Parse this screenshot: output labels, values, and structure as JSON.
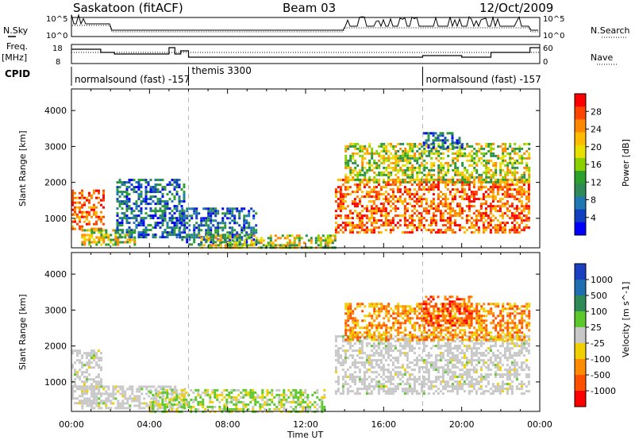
{
  "header": {
    "station": "Saskatoon (fitACF)",
    "beam": "Beam 03",
    "date": "12/Oct/2009"
  },
  "panel_labels": {
    "nsky": "N.Sky",
    "nsearch": "N.Search",
    "freq_line1": "Freq.",
    "freq_line2": "[MHz]",
    "nave": "Nave",
    "cpid": "CPID",
    "nsky_ticks": [
      "10^5",
      "10^0"
    ],
    "nsearch_ticks": [
      "10^5",
      "10^0"
    ],
    "freq_ticks": [
      "18",
      "8"
    ],
    "nave_ticks": [
      "60",
      "0"
    ]
  },
  "cpid_segments": [
    {
      "label": "normalsound (fast) -157",
      "start_hour": 0,
      "end_hour": 6
    },
    {
      "label": "themis 3300",
      "start_hour": 6,
      "end_hour": 18
    },
    {
      "label": "normalsound (fast) -157",
      "start_hour": 18,
      "end_hour": 24
    }
  ],
  "x_axis": {
    "label": "Time UT",
    "range": [
      0,
      24
    ],
    "ticks": [
      "00:00",
      "04:00",
      "08:00",
      "12:00",
      "16:00",
      "20:00",
      "00:00"
    ]
  },
  "colorbars": {
    "power": {
      "label": "Power [dB]",
      "tick_labels": [
        "28",
        "24",
        "20",
        "16",
        "12",
        "8",
        "4"
      ],
      "colors": [
        "#ff0000",
        "#ff4400",
        "#ff8800",
        "#ffbb00",
        "#e8e000",
        "#8ad000",
        "#2ca02c",
        "#2e8b57",
        "#1f77b4",
        "#1040c0",
        "#0000ff"
      ]
    },
    "velocity": {
      "label": "Velocity [m s^-1]",
      "tick_labels": [
        "1000",
        "500",
        "100",
        "25",
        "-25",
        "-100",
        "-500",
        "-1000"
      ],
      "colors": [
        "#1a3fc0",
        "#1f6fb0",
        "#2e8b57",
        "#5cc82c",
        "#c8c8c8",
        "#f0d000",
        "#ff8c00",
        "#ff5000",
        "#ff0000"
      ]
    }
  },
  "chart_data": [
    {
      "type": "heatmap",
      "title": "Power",
      "xlabel": "",
      "ylabel": "Slant Range [km]",
      "xlim": [
        0,
        24
      ],
      "ylim": [
        180,
        4600
      ],
      "yticks": [
        "1000",
        "2000",
        "3000",
        "4000"
      ],
      "regions": [
        {
          "t0": 0.0,
          "t1": 1.6,
          "r0": 700,
          "r1": 1800,
          "level": "high"
        },
        {
          "t0": 0.5,
          "t1": 3.2,
          "r0": 250,
          "r1": 700,
          "level": "mid"
        },
        {
          "t0": 2.3,
          "t1": 5.8,
          "r0": 500,
          "r1": 2100,
          "level": "low"
        },
        {
          "t0": 5.5,
          "t1": 9.5,
          "r0": 250,
          "r1": 1300,
          "level": "low"
        },
        {
          "t0": 6.5,
          "t1": 13.5,
          "r0": 180,
          "r1": 550,
          "level": "mid"
        },
        {
          "t0": 13.5,
          "t1": 23.4,
          "r0": 600,
          "r1": 2100,
          "level": "high"
        },
        {
          "t0": 14.0,
          "t1": 23.5,
          "r0": 2000,
          "r1": 3100,
          "level": "mid"
        },
        {
          "t0": 18.0,
          "t1": 20.0,
          "r0": 3000,
          "r1": 3400,
          "level": "low"
        }
      ]
    },
    {
      "type": "heatmap",
      "title": "Velocity",
      "xlabel": "Time UT",
      "ylabel": "Slant Range [km]",
      "xlim": [
        0,
        24
      ],
      "ylim": [
        180,
        4600
      ],
      "yticks": [
        "1000",
        "2000",
        "3000",
        "4000"
      ],
      "regions": [
        {
          "t0": 0.0,
          "t1": 1.5,
          "r0": 400,
          "r1": 1900,
          "level": "gray"
        },
        {
          "t0": 0.5,
          "t1": 5.8,
          "r0": 250,
          "r1": 900,
          "level": "gray"
        },
        {
          "t0": 4.0,
          "t1": 13.0,
          "r0": 180,
          "r1": 800,
          "level": "green"
        },
        {
          "t0": 13.5,
          "t1": 23.4,
          "r0": 700,
          "r1": 2300,
          "level": "gray"
        },
        {
          "t0": 14.0,
          "t1": 23.5,
          "r0": 2200,
          "r1": 3200,
          "level": "orange"
        },
        {
          "t0": 18.0,
          "t1": 20.5,
          "r0": 2600,
          "r1": 3400,
          "level": "red"
        }
      ]
    }
  ]
}
